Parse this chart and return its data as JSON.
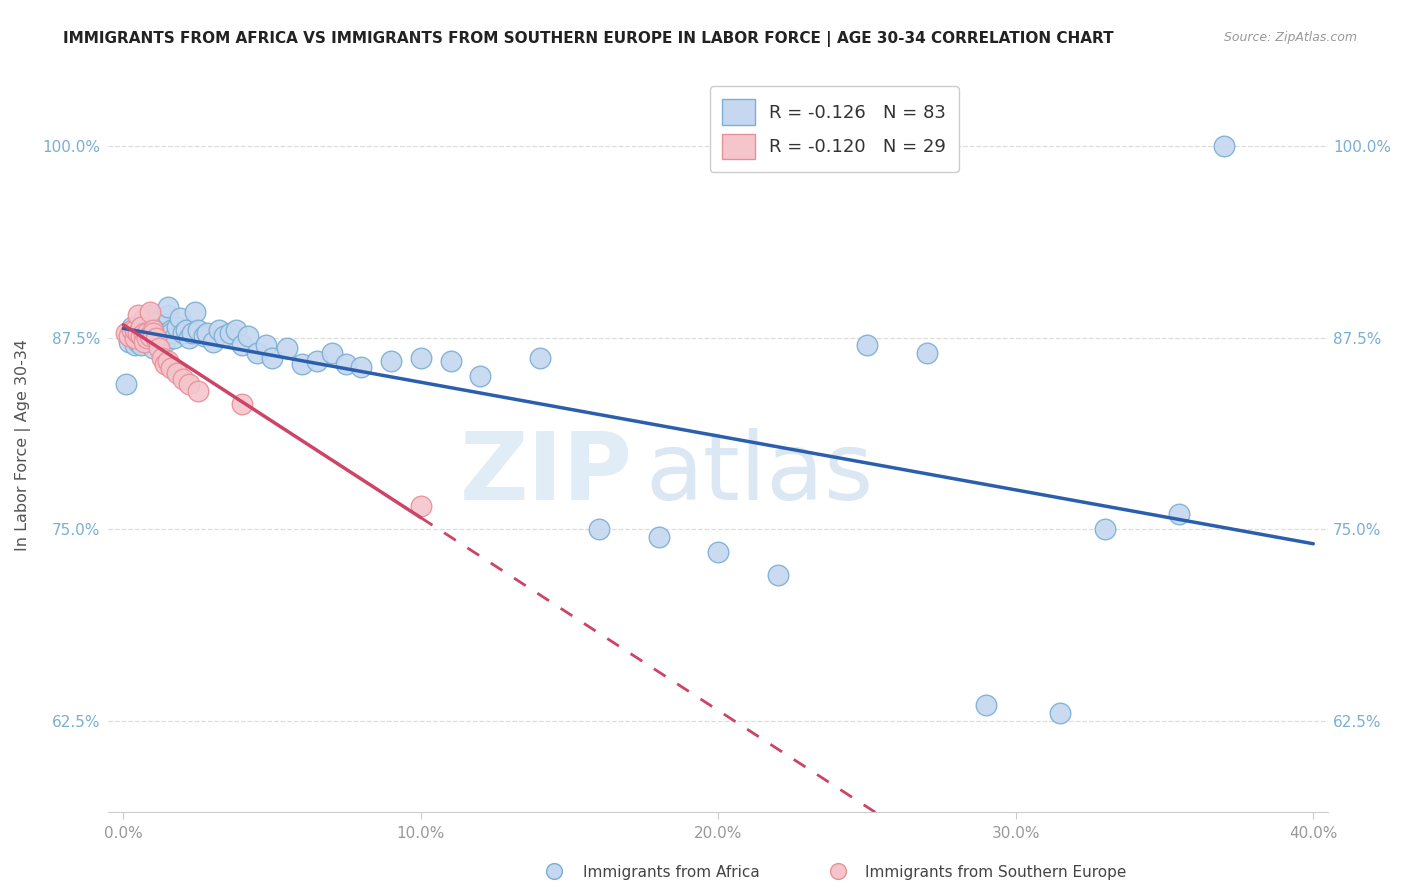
{
  "title": "IMMIGRANTS FROM AFRICA VS IMMIGRANTS FROM SOUTHERN EUROPE IN LABOR FORCE | AGE 30-34 CORRELATION CHART",
  "source": "Source: ZipAtlas.com",
  "ylabel": "In Labor Force | Age 30-34",
  "xlim": [
    -0.005,
    0.405
  ],
  "ylim": [
    0.565,
    1.045
  ],
  "xtick_labels": [
    "0.0%",
    "10.0%",
    "20.0%",
    "30.0%",
    "40.0%"
  ],
  "xtick_vals": [
    0.0,
    0.1,
    0.2,
    0.3,
    0.4
  ],
  "ytick_labels": [
    "62.5%",
    "75.0%",
    "87.5%",
    "100.0%"
  ],
  "ytick_vals": [
    0.625,
    0.75,
    0.875,
    1.0
  ],
  "legend_r_africa": "-0.126",
  "legend_n_africa": "83",
  "legend_r_europe": "-0.120",
  "legend_n_europe": "29",
  "africa_color": "#c5d8f0",
  "africa_edge": "#7aafd4",
  "europe_color": "#f5c5cc",
  "europe_edge": "#e8909a",
  "africa_line_color": "#2b5fad",
  "europe_line_color": "#cc4466",
  "watermark_zip": "ZIP",
  "watermark_atlas": "atlas",
  "bottom_legend_africa": "Immigrants from Africa",
  "bottom_legend_europe": "Immigrants from Southern Europe",
  "africa_x": [
    0.001,
    0.002,
    0.002,
    0.003,
    0.003,
    0.003,
    0.004,
    0.004,
    0.004,
    0.005,
    0.005,
    0.005,
    0.005,
    0.006,
    0.006,
    0.006,
    0.007,
    0.007,
    0.007,
    0.008,
    0.008,
    0.008,
    0.009,
    0.009,
    0.009,
    0.01,
    0.01,
    0.01,
    0.011,
    0.011,
    0.012,
    0.012,
    0.013,
    0.013,
    0.014,
    0.014,
    0.015,
    0.015,
    0.016,
    0.016,
    0.017,
    0.018,
    0.019,
    0.02,
    0.021,
    0.022,
    0.023,
    0.024,
    0.025,
    0.027,
    0.028,
    0.03,
    0.032,
    0.034,
    0.036,
    0.038,
    0.04,
    0.042,
    0.045,
    0.048,
    0.05,
    0.055,
    0.06,
    0.065,
    0.07,
    0.075,
    0.08,
    0.09,
    0.1,
    0.11,
    0.12,
    0.14,
    0.16,
    0.18,
    0.2,
    0.22,
    0.25,
    0.27,
    0.29,
    0.315,
    0.33,
    0.355,
    0.37
  ],
  "africa_y": [
    0.845,
    0.872,
    0.877,
    0.878,
    0.882,
    0.875,
    0.88,
    0.875,
    0.87,
    0.878,
    0.876,
    0.874,
    0.872,
    0.882,
    0.875,
    0.87,
    0.888,
    0.878,
    0.876,
    0.882,
    0.88,
    0.876,
    0.89,
    0.878,
    0.874,
    0.878,
    0.872,
    0.868,
    0.88,
    0.876,
    0.886,
    0.875,
    0.882,
    0.876,
    0.878,
    0.872,
    0.89,
    0.895,
    0.88,
    0.878,
    0.875,
    0.882,
    0.888,
    0.878,
    0.88,
    0.875,
    0.878,
    0.892,
    0.88,
    0.876,
    0.878,
    0.872,
    0.88,
    0.876,
    0.878,
    0.88,
    0.87,
    0.876,
    0.865,
    0.87,
    0.862,
    0.868,
    0.858,
    0.86,
    0.865,
    0.858,
    0.856,
    0.86,
    0.862,
    0.86,
    0.85,
    0.862,
    0.75,
    0.745,
    0.735,
    0.72,
    0.87,
    0.865,
    0.635,
    0.63,
    0.75,
    0.76,
    1.0
  ],
  "europe_x": [
    0.001,
    0.002,
    0.003,
    0.004,
    0.004,
    0.005,
    0.005,
    0.006,
    0.006,
    0.007,
    0.007,
    0.008,
    0.008,
    0.009,
    0.009,
    0.01,
    0.01,
    0.011,
    0.012,
    0.013,
    0.014,
    0.015,
    0.016,
    0.018,
    0.02,
    0.022,
    0.025,
    0.04,
    0.1
  ],
  "europe_y": [
    0.878,
    0.876,
    0.88,
    0.875,
    0.88,
    0.89,
    0.878,
    0.882,
    0.876,
    0.878,
    0.872,
    0.878,
    0.875,
    0.892,
    0.876,
    0.88,
    0.878,
    0.875,
    0.868,
    0.862,
    0.858,
    0.86,
    0.855,
    0.852,
    0.848,
    0.845,
    0.84,
    0.832,
    0.765
  ]
}
